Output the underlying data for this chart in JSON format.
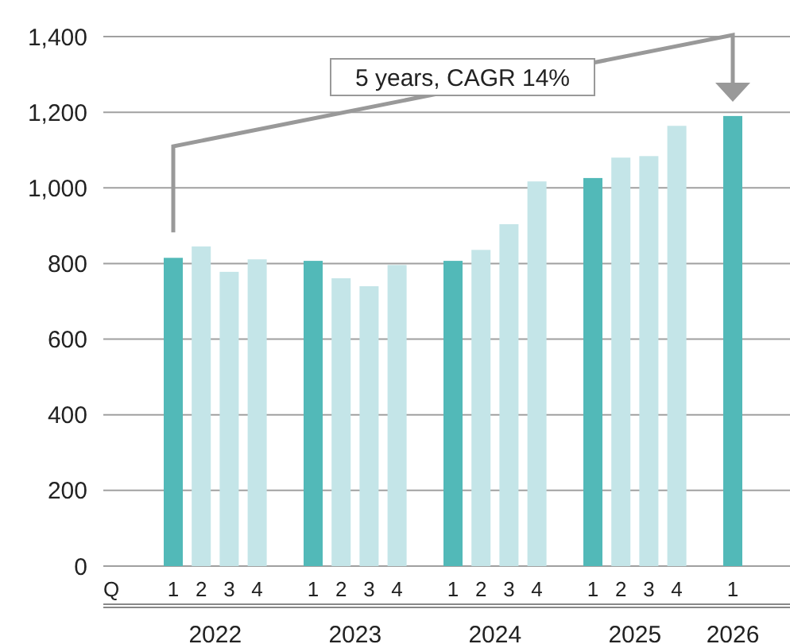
{
  "chart_data": {
    "type": "bar",
    "categories": [
      "1",
      "2",
      "3",
      "4",
      null,
      "1",
      "2",
      "3",
      "4",
      null,
      "1",
      "2",
      "3",
      "4",
      null,
      "1",
      "2",
      "3",
      "4",
      null,
      "1"
    ],
    "values": [
      815,
      845,
      778,
      811,
      null,
      807,
      761,
      740,
      796,
      null,
      807,
      836,
      904,
      1017,
      null,
      1026,
      1080,
      1084,
      1164,
      null,
      1190
    ],
    "colors": [
      "#52b9b8",
      "#c4e5e8",
      "#c4e5e8",
      "#c4e5e8",
      null,
      "#52b9b8",
      "#c4e5e8",
      "#c4e5e8",
      "#c4e5e8",
      null,
      "#52b9b8",
      "#c4e5e8",
      "#c4e5e8",
      "#c4e5e8",
      null,
      "#52b9b8",
      "#c4e5e8",
      "#c4e5e8",
      "#c4e5e8",
      null,
      "#52b9b8"
    ],
    "ylim": [
      0,
      1400
    ],
    "yticks": [
      0,
      {
        "value": 200,
        "label": "200"
      },
      {
        "value": 400,
        "label": "400"
      },
      {
        "value": 600,
        "label": "600"
      },
      {
        "value": 800,
        "label": "800"
      },
      {
        "value": 1000,
        "label": "1,000"
      },
      {
        "value": 1200,
        "label": "1,200"
      },
      {
        "value": 1400,
        "label": "1,400"
      }
    ],
    "grid": "y",
    "xlabel": "Q",
    "annotations": [
      "5 years, CAGR 14%",
      "2022",
      "2023",
      "2024",
      "2025",
      "2026"
    ]
  }
}
